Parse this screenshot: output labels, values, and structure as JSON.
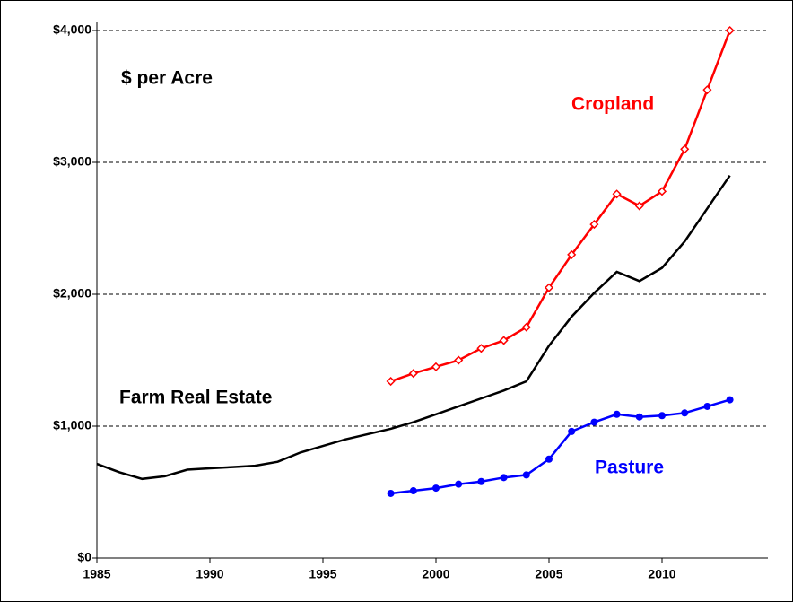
{
  "chart_data": {
    "type": "line",
    "y_label": "$ per Acre",
    "x": [
      1985,
      1986,
      1987,
      1988,
      1989,
      1990,
      1991,
      1992,
      1993,
      1994,
      1995,
      1996,
      1997,
      1998,
      1999,
      2000,
      2001,
      2002,
      2003,
      2004,
      2005,
      2006,
      2007,
      2008,
      2009,
      2010,
      2011,
      2012,
      2013
    ],
    "series": [
      {
        "name": "Farm Real Estate",
        "color": "#000000",
        "marker": "none",
        "values": [
          714,
          650,
          600,
          620,
          670,
          680,
          690,
          700,
          730,
          800,
          850,
          900,
          940,
          980,
          1030,
          1090,
          1150,
          1210,
          1270,
          1340,
          1610,
          1830,
          2010,
          2170,
          2100,
          2200,
          2400,
          2650,
          2900
        ]
      },
      {
        "name": "Cropland",
        "color": "#ff0000",
        "marker": "open-diamond",
        "values": [
          null,
          null,
          null,
          null,
          null,
          null,
          null,
          null,
          null,
          null,
          null,
          null,
          null,
          1340,
          1400,
          1450,
          1500,
          1590,
          1650,
          1750,
          2050,
          2300,
          2530,
          2760,
          2670,
          2780,
          3100,
          3550,
          4000
        ]
      },
      {
        "name": "Pasture",
        "color": "#0000ff",
        "marker": "filled-circle",
        "values": [
          null,
          null,
          null,
          null,
          null,
          null,
          null,
          null,
          null,
          null,
          null,
          null,
          null,
          490,
          510,
          530,
          560,
          580,
          610,
          630,
          750,
          960,
          1030,
          1090,
          1070,
          1080,
          1100,
          1150,
          1200
        ]
      }
    ],
    "xlim": [
      1985,
      2015
    ],
    "xticks": [
      1985,
      1990,
      1995,
      2000,
      2005,
      2010
    ],
    "ylim": [
      0,
      4000
    ],
    "yticks": [
      {
        "value": 0,
        "label": "$0"
      },
      {
        "value": 1000,
        "label": "$1,000"
      },
      {
        "value": 2000,
        "label": "$2,000"
      },
      {
        "value": 3000,
        "label": "$3,000"
      },
      {
        "value": 4000,
        "label": "$4,000"
      }
    ],
    "grid": true
  }
}
